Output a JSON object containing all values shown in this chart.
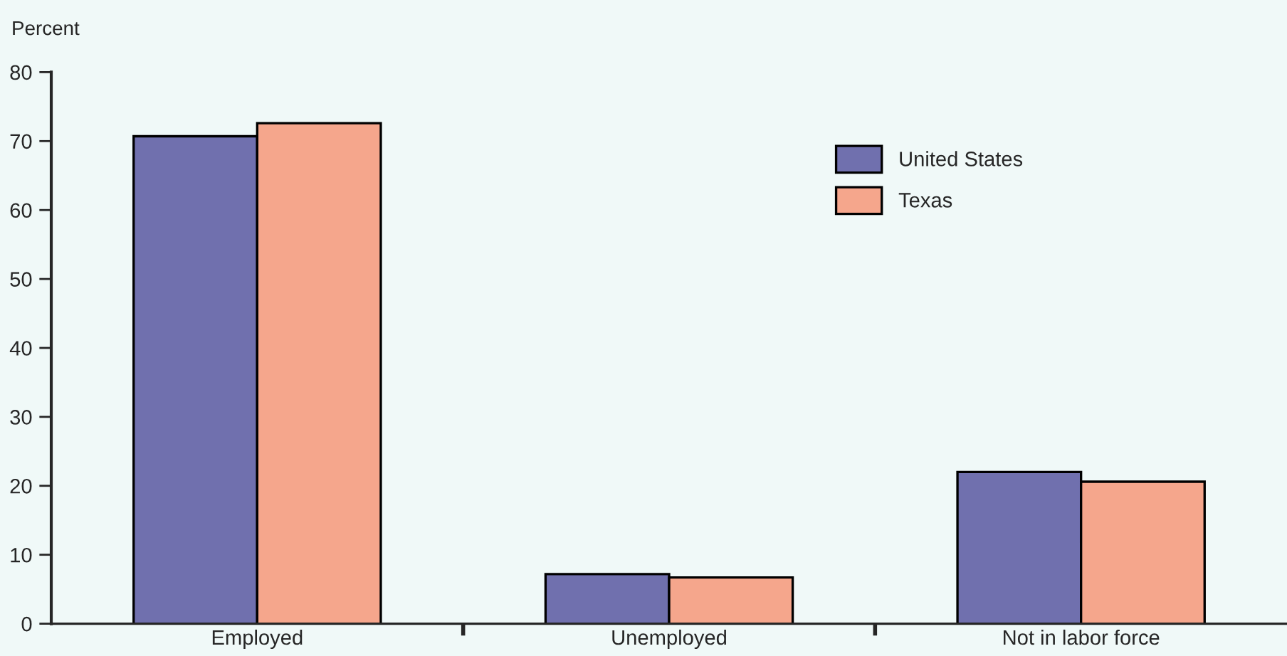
{
  "chart_data": {
    "type": "bar",
    "ylabel": "Percent",
    "categories": [
      "Employed",
      "Unemployed",
      "Not in labor force"
    ],
    "series": [
      {
        "name": "United States",
        "color": "#7070ae",
        "values": [
          70.7,
          7.2,
          22.0
        ]
      },
      {
        "name": "Texas",
        "color": "#f5a68c",
        "values": [
          72.6,
          6.7,
          20.6
        ]
      }
    ],
    "ylim": [
      0,
      80
    ],
    "yticks": [
      0,
      10,
      20,
      30,
      40,
      50,
      60,
      70,
      80
    ],
    "grid": false,
    "legend": "top right"
  }
}
